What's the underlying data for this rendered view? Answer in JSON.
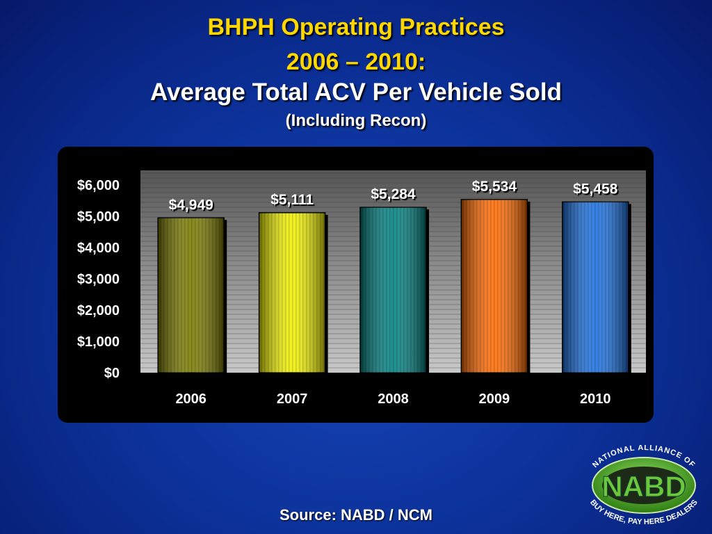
{
  "slide": {
    "title_line1": "BHPH Operating Practices",
    "title_line2": "2006 – 2010:",
    "title_line3": "Average Total ACV Per Vehicle Sold",
    "subtitle": "(Including Recon)",
    "source": "Source: NABD / NCM"
  },
  "logo": {
    "top_text": "NATIONAL ALLIANCE OF",
    "center_text": "NABD",
    "bottom_text": "BUY HERE, PAY HERE DEALERS"
  },
  "chart_data": {
    "type": "bar",
    "categories": [
      "2006",
      "2007",
      "2008",
      "2009",
      "2010"
    ],
    "values": [
      4949,
      5111,
      5284,
      5534,
      5458
    ],
    "data_labels": [
      "$4,949",
      "$5,111",
      "$5,284",
      "$5,534",
      "$5,458"
    ],
    "yticks": [
      "$0",
      "$1,000",
      "$2,000",
      "$3,000",
      "$4,000",
      "$5,000",
      "$6,000"
    ],
    "ylim": [
      0,
      6000
    ],
    "colors": [
      "#7a7a00",
      "#f0f000",
      "#008080",
      "#ff6a00",
      "#1a6fe0"
    ],
    "grid": true
  }
}
